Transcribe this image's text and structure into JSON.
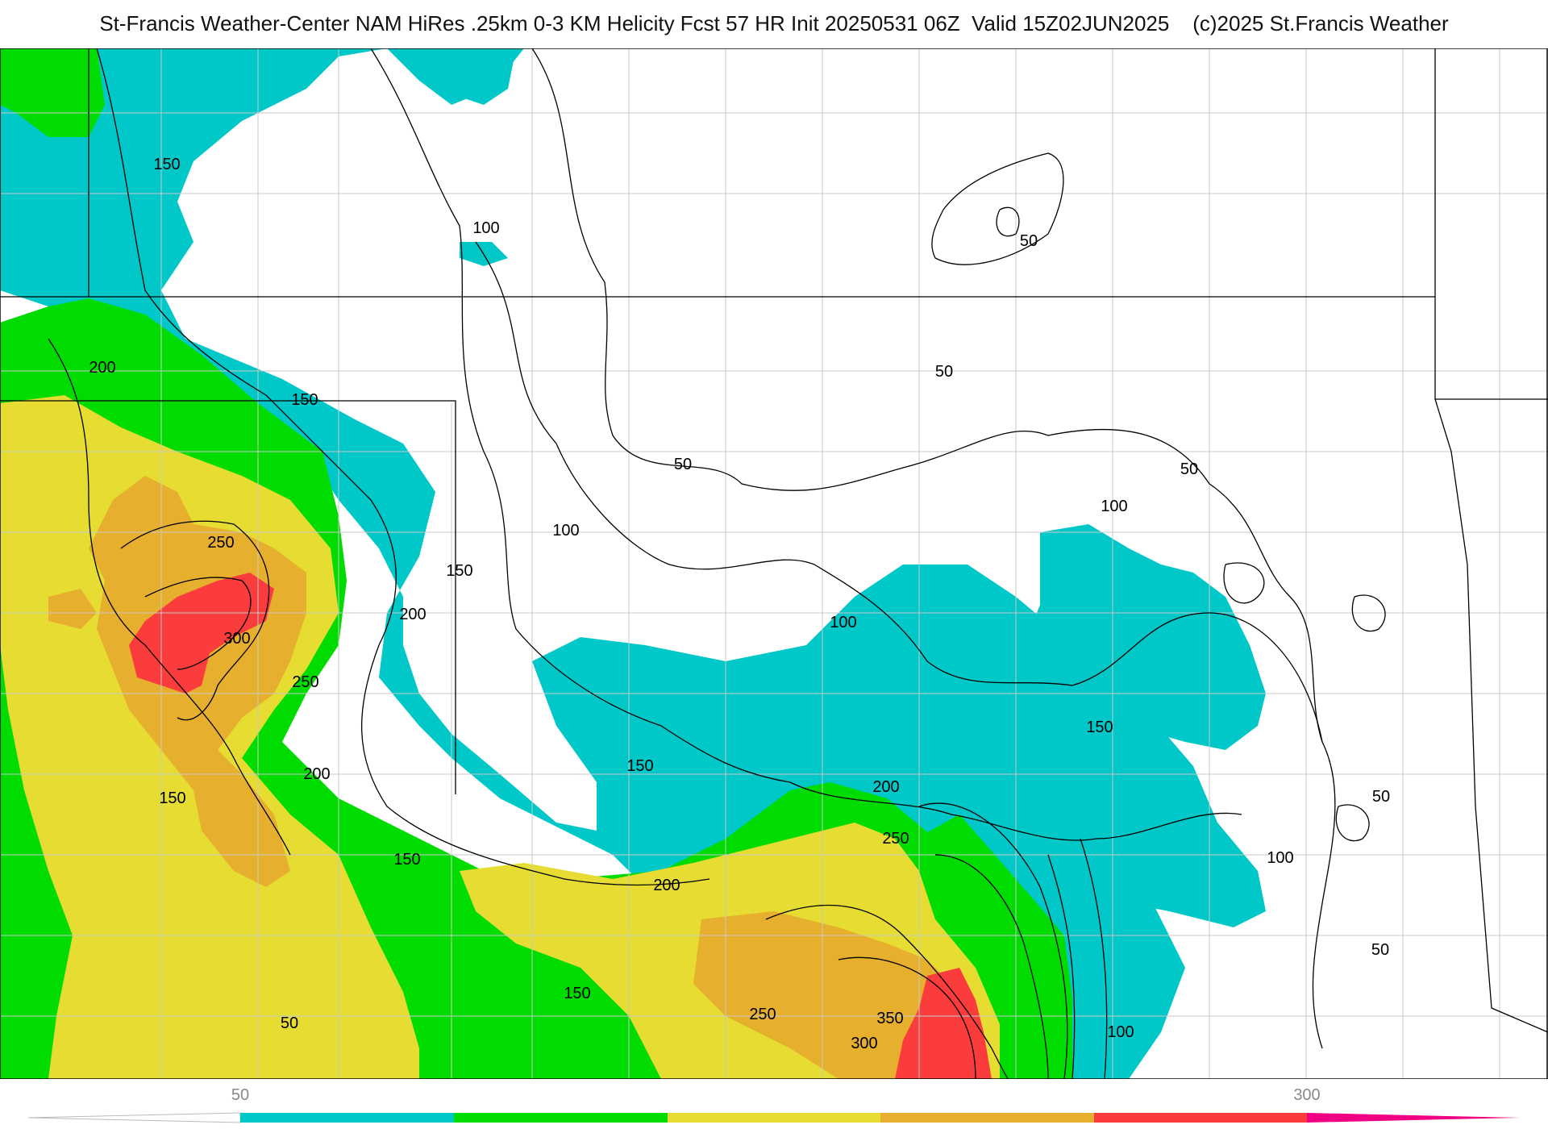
{
  "title": "St-Francis Weather-Center NAM HiRes .25km 0-3 KM Helicity Fcst 57 HR Init 20250531 06Z  Valid 15Z02JUN2025    (c)2025 St.Francis Weather",
  "colors": {
    "band_50_100": "#00c8c8",
    "band_100_150": "#00dc00",
    "band_150_200": "#e6dc32",
    "band_200_250": "#e6af2d",
    "band_250_300": "#fa3c3c",
    "band_300_plus": "#f00082",
    "contour": "#000000",
    "borders": "#000000",
    "county_lines": "#c8c8c8"
  },
  "contour_labels": [
    "150",
    "100",
    "50",
    "200",
    "150",
    "50",
    "50",
    "100",
    "100",
    "50",
    "250",
    "150",
    "200",
    "300",
    "100",
    "250",
    "200",
    "150",
    "150",
    "150",
    "50",
    "200",
    "150",
    "200",
    "250",
    "100",
    "150",
    "250",
    "350",
    "300",
    "100",
    "50"
  ],
  "legend": {
    "tick_labels": [
      "50",
      "300"
    ]
  }
}
